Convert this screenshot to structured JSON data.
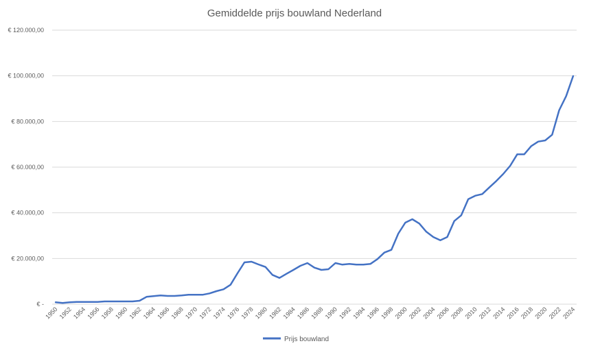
{
  "chart_data": {
    "type": "line",
    "title": "Gemiddelde prijs bouwland Nederland",
    "xlabel": "",
    "ylabel": "",
    "ylim": [
      0,
      120000
    ],
    "y_ticks": [
      0,
      20000,
      40000,
      60000,
      80000,
      100000,
      120000
    ],
    "y_tick_labels": [
      "€ -",
      "€ 20.000,00",
      "€ 40.000,00",
      "€ 60.000,00",
      "€ 80.000,00",
      "€ 100.000,00",
      "€ 120.000,00"
    ],
    "x_tick_labels": [
      "1950",
      "1952",
      "1954",
      "1956",
      "1958",
      "1960",
      "1962",
      "1964",
      "1966",
      "1968",
      "1970",
      "1972",
      "1974",
      "1976",
      "1978",
      "1980",
      "1982",
      "1984",
      "1986",
      "1988",
      "1990",
      "1992",
      "1994",
      "1996",
      "1998",
      "2000",
      "2002",
      "2004",
      "2006",
      "2008",
      "2010",
      "2012",
      "2014",
      "2016",
      "2018",
      "2020",
      "2022",
      "2024"
    ],
    "grid": "horizontal",
    "legend_position": "bottom",
    "series": [
      {
        "name": "Prijs bouwland",
        "color": "#4472C4",
        "x": [
          1950,
          1951,
          1952,
          1953,
          1954,
          1955,
          1956,
          1957,
          1958,
          1959,
          1960,
          1961,
          1962,
          1963,
          1964,
          1965,
          1966,
          1967,
          1968,
          1969,
          1970,
          1971,
          1972,
          1973,
          1974,
          1975,
          1976,
          1977,
          1978,
          1979,
          1980,
          1981,
          1982,
          1983,
          1984,
          1985,
          1986,
          1987,
          1988,
          1989,
          1990,
          1991,
          1992,
          1993,
          1994,
          1995,
          1996,
          1997,
          1998,
          1999,
          2000,
          2001,
          2002,
          2003,
          2004,
          2005,
          2006,
          2007,
          2008,
          2009,
          2010,
          2011,
          2012,
          2013,
          2014,
          2015,
          2016,
          2017,
          2018,
          2019,
          2020,
          2021,
          2022,
          2023,
          2024
        ],
        "values": [
          800,
          500,
          800,
          1000,
          1000,
          1000,
          1000,
          1200,
          1200,
          1200,
          1200,
          1200,
          1500,
          3200,
          3500,
          3800,
          3600,
          3600,
          3800,
          4100,
          4100,
          4100,
          4700,
          5700,
          6500,
          8500,
          13500,
          18300,
          18600,
          17400,
          16300,
          12800,
          11500,
          13300,
          15000,
          16800,
          18000,
          16000,
          15000,
          15300,
          18000,
          17300,
          17600,
          17300,
          17300,
          17600,
          19700,
          22600,
          23800,
          30900,
          35700,
          37200,
          35300,
          31700,
          29400,
          28000,
          29400,
          36400,
          38900,
          46000,
          47500,
          48200,
          51100,
          53900,
          57000,
          60600,
          65600,
          65600,
          69200,
          71200,
          71700,
          74200,
          84900,
          91100,
          99900
        ]
      }
    ]
  },
  "legend": {
    "label": "Prijs bouwland"
  }
}
